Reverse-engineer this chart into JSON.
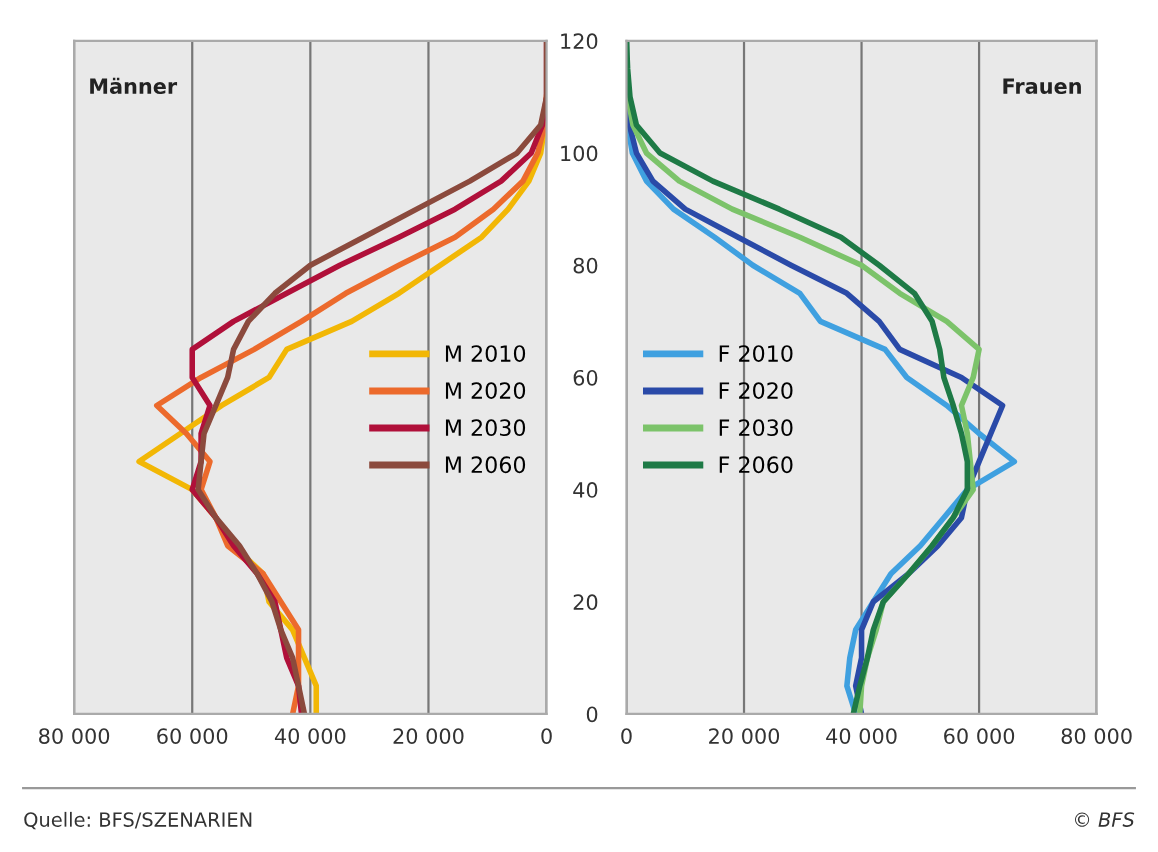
{
  "chart_data": [
    {
      "type": "line",
      "title": "Männer",
      "orientation": "horizontal",
      "xlim": [
        80000,
        0
      ],
      "ylim": [
        0,
        120
      ],
      "xticks": [
        {
          "value": 80000,
          "label": "80 000"
        },
        {
          "value": 60000,
          "label": "60 000"
        },
        {
          "value": 40000,
          "label": "40 000"
        },
        {
          "value": 20000,
          "label": "20 000"
        },
        0
      ],
      "yticks": [
        0,
        20,
        40,
        60,
        80,
        100,
        120
      ],
      "tick_labels": "x",
      "grid": "x",
      "legend": "center right",
      "x": [
        0,
        5,
        10,
        15,
        20,
        25,
        30,
        35,
        40,
        45,
        50,
        55,
        60,
        65,
        70,
        75,
        80,
        85,
        90,
        95,
        100,
        105,
        110,
        115,
        120
      ],
      "series": [
        {
          "name": "M 2010",
          "color": "#f2b705",
          "values": [
            39000,
            39000,
            41000,
            43000,
            47000,
            48000,
            53000,
            56000,
            60000,
            69000,
            62000,
            55000,
            47000,
            44000,
            33000,
            25000,
            18000,
            11000,
            6500,
            3000,
            1000,
            300,
            0,
            null,
            null
          ]
        },
        {
          "name": "M 2020",
          "color": "#ec6a2c",
          "values": [
            43000,
            42000,
            42000,
            42000,
            45000,
            48000,
            54000,
            56000,
            58500,
            57000,
            61000,
            66000,
            58500,
            49500,
            41500,
            34000,
            25000,
            15500,
            9000,
            4000,
            1500,
            300,
            0,
            null,
            null
          ]
        },
        {
          "name": "M 2030",
          "color": "#b0103a",
          "values": [
            41500,
            42000,
            44000,
            45000,
            46000,
            49000,
            53000,
            56000,
            60000,
            58500,
            58500,
            57000,
            60000,
            60000,
            53000,
            44000,
            35000,
            25000,
            15500,
            7700,
            2600,
            700,
            0,
            0,
            0
          ]
        },
        {
          "name": "M 2060",
          "color": "#8b4a3d",
          "values": [
            41000,
            42000,
            43000,
            45000,
            46500,
            49000,
            52000,
            56000,
            59000,
            58500,
            58000,
            56000,
            54000,
            53000,
            50500,
            46000,
            40000,
            31000,
            22000,
            13000,
            5000,
            1000,
            0,
            0,
            0
          ]
        }
      ],
      "annotations": [
        "Quelle: BFS/SZENARIEN",
        "© BFS"
      ]
    },
    {
      "type": "line",
      "title": "Frauen",
      "orientation": "horizontal",
      "xlim": [
        0,
        80000
      ],
      "ylim": [
        0,
        120
      ],
      "xticks": [
        0,
        {
          "value": 20000,
          "label": "20 000"
        },
        {
          "value": 40000,
          "label": "40 000"
        },
        {
          "value": 60000,
          "label": "60 000"
        },
        {
          "value": 80000,
          "label": "80 000"
        }
      ],
      "yticks": [
        0,
        20,
        40,
        60,
        80,
        100,
        120
      ],
      "grid": "x",
      "legend": "center left",
      "x": [
        0,
        5,
        10,
        15,
        20,
        25,
        30,
        35,
        40,
        45,
        50,
        55,
        60,
        65,
        70,
        75,
        80,
        85,
        90,
        95,
        100,
        105,
        110,
        115,
        120
      ],
      "series": [
        {
          "name": "F 2010",
          "color": "#3fa0e0",
          "values": [
            39000,
            37500,
            38000,
            39000,
            42000,
            45000,
            50000,
            54000,
            58000,
            66000,
            60000,
            54500,
            47700,
            44000,
            33000,
            29500,
            21500,
            15000,
            8000,
            3400,
            1000,
            200,
            0,
            null,
            null
          ]
        },
        {
          "name": "F 2020",
          "color": "#2a4aa8",
          "values": [
            40000,
            39000,
            40000,
            40000,
            42000,
            48000,
            53000,
            57000,
            58000,
            60000,
            62000,
            64000,
            57000,
            46500,
            43000,
            37500,
            28000,
            19000,
            10000,
            4500,
            1700,
            500,
            0,
            0,
            0
          ]
        },
        {
          "name": "F 2030",
          "color": "#7cc36a",
          "values": [
            39700,
            40000,
            41000,
            42500,
            43700,
            48000,
            52000,
            55600,
            59000,
            58500,
            58000,
            57000,
            59000,
            60000,
            54500,
            46500,
            40000,
            29500,
            18000,
            9000,
            3400,
            1100,
            200,
            0,
            0
          ]
        },
        {
          "name": "F 2060",
          "color": "#1e7a46",
          "values": [
            38600,
            39700,
            41000,
            42000,
            43700,
            48000,
            52000,
            55600,
            58000,
            58000,
            57000,
            55600,
            54000,
            53300,
            52000,
            49000,
            43000,
            36500,
            26000,
            14700,
            5700,
            1700,
            600,
            200,
            0
          ]
        }
      ]
    }
  ]
}
